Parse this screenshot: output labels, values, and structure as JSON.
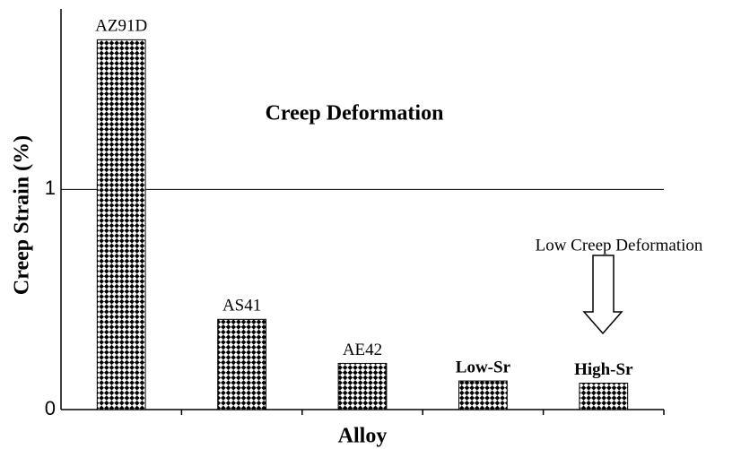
{
  "chart_data": {
    "type": "bar",
    "x_label": "Alloy",
    "y_label": "Creep Strain (%)",
    "annotations": [
      "Creep Deformation",
      "Low Creep Deformation"
    ],
    "categories": [
      "AZ91D",
      "AS41",
      "AE42",
      "Low-Sr",
      "High-Sr"
    ],
    "values": [
      1.68,
      0.41,
      0.21,
      0.13,
      0.12
    ],
    "color": "#000000",
    "ylim": [
      0,
      1.82
    ],
    "yticks": [
      0,
      1
    ],
    "grid": true
  }
}
